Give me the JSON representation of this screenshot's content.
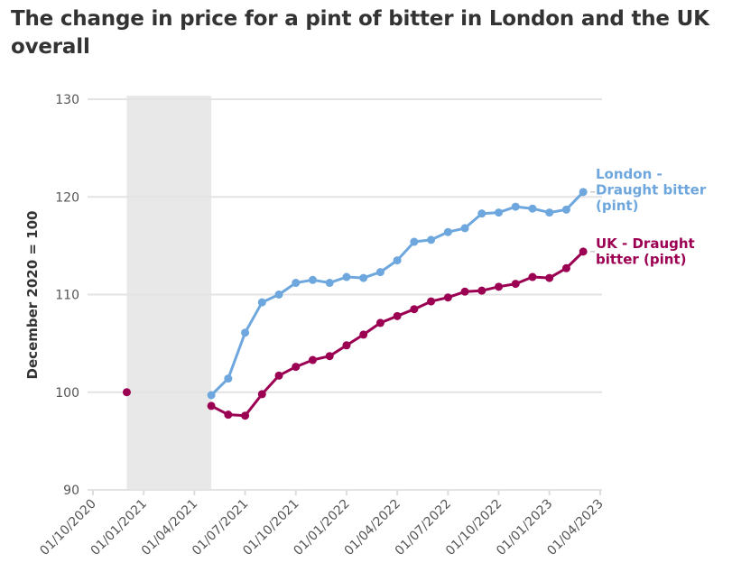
{
  "chart_data": {
    "type": "line",
    "title": "The change in price for a pint of bitter in London and the UK overall",
    "xlabel": "",
    "ylabel": "December 2020 = 100",
    "ylim": [
      90,
      130
    ],
    "yticks": [
      90,
      100,
      110,
      120,
      130
    ],
    "xticks": [
      "01/10/2020",
      "01/01/2021",
      "01/04/2021",
      "01/07/2021",
      "01/10/2021",
      "01/01/2022",
      "01/04/2022",
      "01/07/2022",
      "01/10/2022",
      "01/01/2023",
      "01/04/2023"
    ],
    "grid": true,
    "shaded_period": {
      "from": "2020-12",
      "to": "2021-05"
    },
    "x": [
      "2021-05",
      "2021-06",
      "2021-07",
      "2021-08",
      "2021-09",
      "2021-10",
      "2021-11",
      "2021-12",
      "2022-01",
      "2022-02",
      "2022-03",
      "2022-04",
      "2022-05",
      "2022-06",
      "2022-07",
      "2022-08",
      "2022-09",
      "2022-10",
      "2022-11",
      "2022-12",
      "2023-01",
      "2023-02",
      "2023-03"
    ],
    "series": [
      {
        "name": "London - Draught bitter (pint)",
        "label_lines": [
          "London -",
          "Draught bitter",
          "(pint)"
        ],
        "color": "#6ea7de",
        "values": [
          99.7,
          101.4,
          106.1,
          109.2,
          110.0,
          111.2,
          111.5,
          111.2,
          111.8,
          111.7,
          112.3,
          113.5,
          115.4,
          115.6,
          116.4,
          116.8,
          118.3,
          118.4,
          119.0,
          118.8,
          118.4,
          118.7,
          120.5
        ]
      },
      {
        "name": "UK - Draught bitter (pint)",
        "label_lines": [
          "UK - Draught",
          "bitter (pint)"
        ],
        "color": "#9b0052",
        "extra_points": [
          {
            "x": "2020-12",
            "y": 100
          }
        ],
        "values": [
          98.6,
          97.7,
          97.6,
          99.8,
          101.7,
          102.6,
          103.3,
          103.7,
          104.8,
          105.9,
          107.1,
          107.8,
          108.5,
          109.3,
          109.7,
          110.3,
          110.4,
          110.8,
          111.1,
          111.8,
          111.7,
          112.7,
          114.4
        ]
      }
    ]
  }
}
